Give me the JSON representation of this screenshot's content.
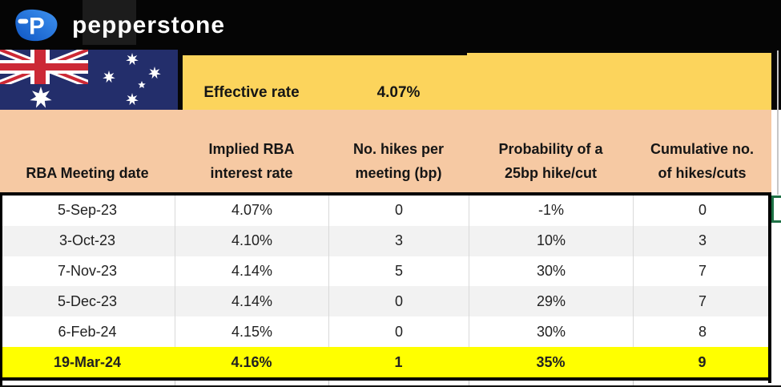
{
  "topbar": {
    "brand": "pepperstone",
    "logo_letter": "P"
  },
  "effective_rate": {
    "label": "Effective rate",
    "value": "4.07%"
  },
  "table": {
    "headers": [
      "RBA Meeting date",
      "Implied RBA interest rate",
      "No. hikes per meeting (bp)",
      "Probability of a 25bp hike/cut",
      "Cumulative no. of hikes/cuts"
    ],
    "rows": [
      [
        "5-Sep-23",
        "4.07%",
        "0",
        "-1%",
        "0"
      ],
      [
        "3-Oct-23",
        "4.10%",
        "3",
        "10%",
        "3"
      ],
      [
        "7-Nov-23",
        "4.14%",
        "5",
        "30%",
        "7"
      ],
      [
        "5-Dec-23",
        "4.14%",
        "0",
        "29%",
        "7"
      ],
      [
        "6-Feb-24",
        "4.15%",
        "0",
        "30%",
        "8"
      ],
      [
        "19-Mar-24",
        "4.16%",
        "1",
        "35%",
        "9"
      ]
    ],
    "highlighted_row_index": 5
  },
  "colors": {
    "gold_band": "#FCD45C",
    "header_peach": "#F6C9A3",
    "highlight_yellow": "#FFFF00",
    "row_alt_gray": "#F2F2F2",
    "selection_green": "#1E7145",
    "brand_blue": "#2173DE",
    "flag_navy": "#232E6B",
    "flag_red": "#CC2936"
  }
}
